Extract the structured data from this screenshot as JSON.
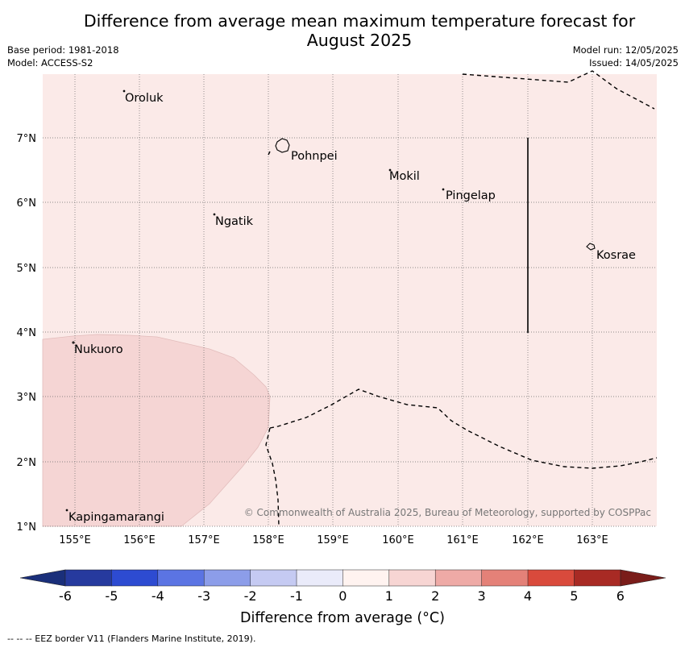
{
  "title": "Difference from average mean maximum temperature forecast for August 2025",
  "meta": {
    "base_period": "Base period: 1981-2018",
    "model": "Model: ACCESS-S2",
    "model_run": "Model run: 12/05/2025",
    "issued": "Issued: 14/05/2025"
  },
  "map": {
    "lat_labels": [
      "7°N",
      "6°N",
      "5°N",
      "4°N",
      "3°N",
      "2°N",
      "1°N"
    ],
    "lon_labels": [
      "155°E",
      "156°E",
      "157°E",
      "158°E",
      "159°E",
      "160°E",
      "161°E",
      "162°E",
      "163°E"
    ],
    "places": [
      {
        "name": "Oroluk"
      },
      {
        "name": "Pohnpei"
      },
      {
        "name": "Mokil"
      },
      {
        "name": "Pingelap"
      },
      {
        "name": "Ngatik"
      },
      {
        "name": "Kosrae"
      },
      {
        "name": "Nukuoro"
      },
      {
        "name": "Kapingamarangi"
      }
    ],
    "copyright": "© Commonwealth of Australia 2025, Bureau of Meteorology, supported by COSPPac",
    "background_color": "#fbeae8",
    "anomaly_zone_color": "#f5d5d4"
  },
  "colorbar": {
    "ticks": [
      "-6",
      "-5",
      "-4",
      "-3",
      "-2",
      "-1",
      "0",
      "1",
      "2",
      "3",
      "4",
      "5",
      "6"
    ],
    "colors": [
      "#263a9e",
      "#2d4bd1",
      "#5b74e3",
      "#8c9de9",
      "#c5caf2",
      "#eaebfa",
      "#fff3f0",
      "#f7d5d3",
      "#eeaaa6",
      "#e48178",
      "#d94a3c",
      "#a82a24"
    ],
    "under_color": "#1a2f7a",
    "over_color": "#7a1d1a",
    "label": "Difference from average (°C)"
  },
  "footnote": "--  --  -- EEZ border V11 (Flanders Marine Institute, 2019)."
}
